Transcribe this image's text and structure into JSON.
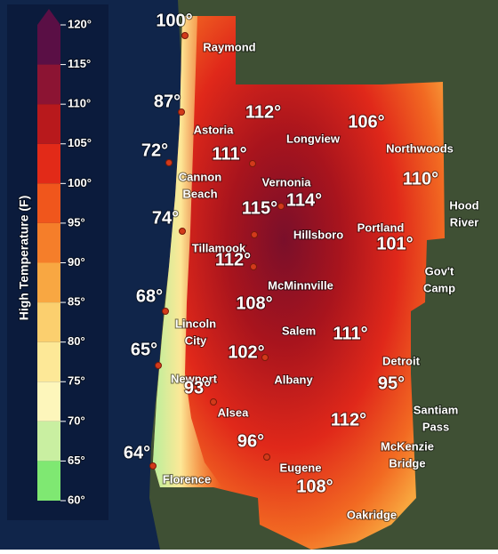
{
  "legend": {
    "title": "High Temperature (F)",
    "ticks": [
      {
        "value": 120,
        "label": "120°"
      },
      {
        "value": 115,
        "label": "115°"
      },
      {
        "value": 110,
        "label": "110°"
      },
      {
        "value": 105,
        "label": "105°"
      },
      {
        "value": 100,
        "label": "100°"
      },
      {
        "value": 95,
        "label": "95°"
      },
      {
        "value": 90,
        "label": "90°"
      },
      {
        "value": 85,
        "label": "85°"
      },
      {
        "value": 80,
        "label": "80°"
      },
      {
        "value": 75,
        "label": "75°"
      },
      {
        "value": 70,
        "label": "70°"
      },
      {
        "value": 65,
        "label": "65°"
      },
      {
        "value": 60,
        "label": "60°"
      }
    ],
    "colors": [
      "#5a0f45",
      "#8c1433",
      "#b8191c",
      "#e22a18",
      "#f0561c",
      "#f57e2a",
      "#f8a742",
      "#fbcf6e",
      "#fde897",
      "#fdf6bb",
      "#c9efa1",
      "#7fe872"
    ]
  },
  "places": [
    [
      "Raymond"
    ],
    [
      "Astoria"
    ],
    [
      "Longview"
    ],
    [
      "Northwoods"
    ],
    [
      "Cannon",
      "Beach"
    ],
    [
      "Vernonia"
    ],
    [
      "Hood",
      "River"
    ],
    [
      "Hillsboro"
    ],
    [
      "Portland"
    ],
    [
      "Tillamook"
    ],
    [
      "Gov't",
      "Camp"
    ],
    [
      "McMinnville"
    ],
    [
      "Lincoln",
      "City"
    ],
    [
      "Salem"
    ],
    [
      "Detroit"
    ],
    [
      "Newport"
    ],
    [
      "Albany"
    ],
    [
      "Santiam",
      "Pass"
    ],
    [
      "Alsea"
    ],
    [
      "McKenzie",
      "Bridge"
    ],
    [
      "Eugene"
    ],
    [
      "Florence"
    ],
    [
      "Oakridge"
    ]
  ],
  "temps": [
    "100°",
    "87°",
    "112°",
    "106°",
    "72°",
    "111°",
    "110°",
    "74°",
    "115°",
    "114°",
    "101°",
    "112°",
    "68°",
    "108°",
    "111°",
    "65°",
    "102°",
    "95°",
    "93°",
    "112°",
    "64°",
    "96°",
    "108°"
  ]
}
